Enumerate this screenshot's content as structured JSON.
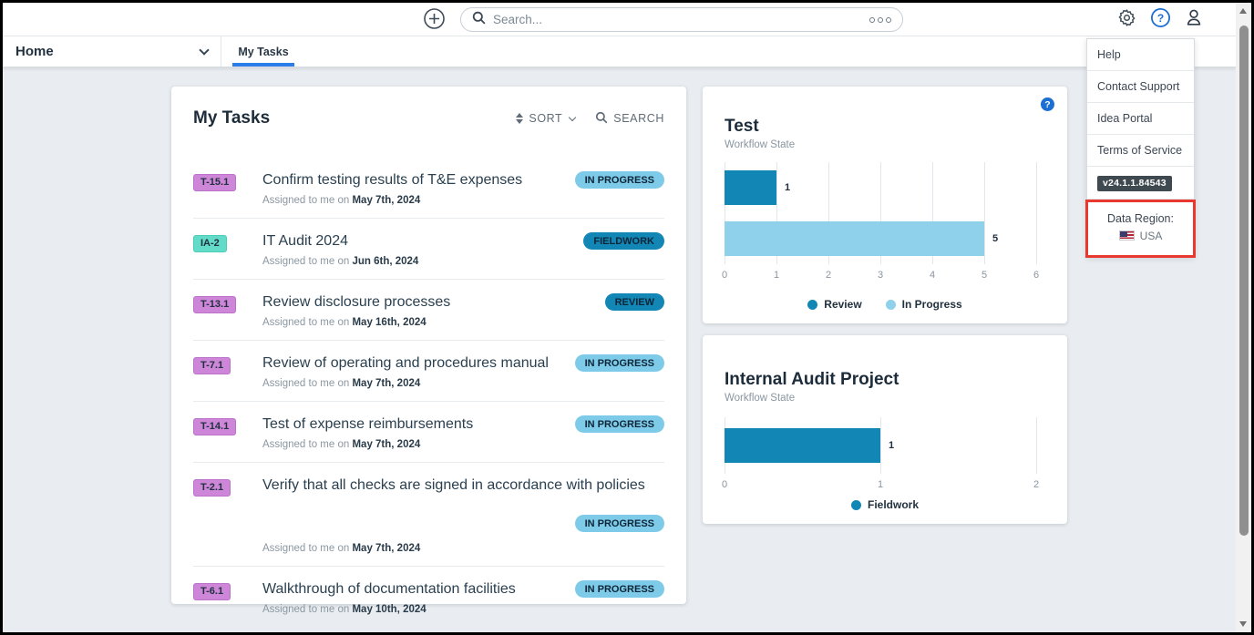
{
  "topbar": {
    "search_placeholder": "Search..."
  },
  "nav": {
    "home_label": "Home",
    "active_tab": "My Tasks"
  },
  "tasks_panel": {
    "title": "My Tasks",
    "sort_label": "SORT",
    "search_label": "SEARCH",
    "assigned_prefix": "Assigned to me on",
    "tasks": [
      {
        "id": "T-15.1",
        "title": "Confirm testing results of T&E expenses",
        "date": "May 7th, 2024",
        "status": "IN PROGRESS"
      },
      {
        "id": "IA-2",
        "title": "IT Audit 2024",
        "date": "Jun 6th, 2024",
        "status": "FIELDWORK"
      },
      {
        "id": "T-13.1",
        "title": "Review disclosure processes",
        "date": "May 16th, 2024",
        "status": "REVIEW"
      },
      {
        "id": "T-7.1",
        "title": "Review of operating and procedures manual",
        "date": "May 7th, 2024",
        "status": "IN PROGRESS"
      },
      {
        "id": "T-14.1",
        "title": "Test of expense reimbursements",
        "date": "May 7th, 2024",
        "status": "IN PROGRESS"
      },
      {
        "id": "T-2.1",
        "title": "Verify that all checks are signed in accordance with policies",
        "date": "May 7th, 2024",
        "status": "IN PROGRESS"
      },
      {
        "id": "T-6.1",
        "title": "Walkthrough of documentation facilities",
        "date": "May 10th, 2024",
        "status": "IN PROGRESS"
      }
    ]
  },
  "help_menu": {
    "items": [
      "Help",
      "Contact Support",
      "Idea Portal",
      "Terms of Service"
    ],
    "version": "v24.1.1.84543",
    "data_region_label": "Data Region:",
    "data_region_value": "USA"
  },
  "chart_data": [
    {
      "type": "bar",
      "orientation": "horizontal",
      "title": "Test",
      "subtitle": "Workflow State",
      "categories": [
        "Review",
        "In Progress"
      ],
      "values": [
        1,
        5
      ],
      "colors": [
        "#1286b5",
        "#8fd1ea"
      ],
      "xlim": [
        0,
        6
      ],
      "xticks": [
        0,
        1,
        2,
        3,
        4,
        5,
        6
      ],
      "legend": [
        "Review",
        "In Progress"
      ],
      "legend_position": "bottom",
      "grid": true
    },
    {
      "type": "bar",
      "orientation": "horizontal",
      "title": "Internal Audit Project",
      "subtitle": "Workflow State",
      "categories": [
        "Fieldwork"
      ],
      "values": [
        1
      ],
      "colors": [
        "#1286b5"
      ],
      "xlim": [
        0,
        2
      ],
      "xticks": [
        0,
        1,
        2
      ],
      "legend": [
        "Fieldwork"
      ],
      "legend_position": "bottom",
      "grid": true
    }
  ],
  "colors": {
    "accent_blue": "#2b7de9",
    "help_blue": "#1b6ed3",
    "bar_dark": "#1286b5",
    "bar_light": "#8fd1ea",
    "pill_light": "#7ecbe9",
    "pill_dark": "#1286b5",
    "badge_purple": "#cd86d8",
    "badge_teal": "#62dcc8",
    "highlight_red": "#e8382f",
    "version_badge_bg": "#3e4950"
  }
}
